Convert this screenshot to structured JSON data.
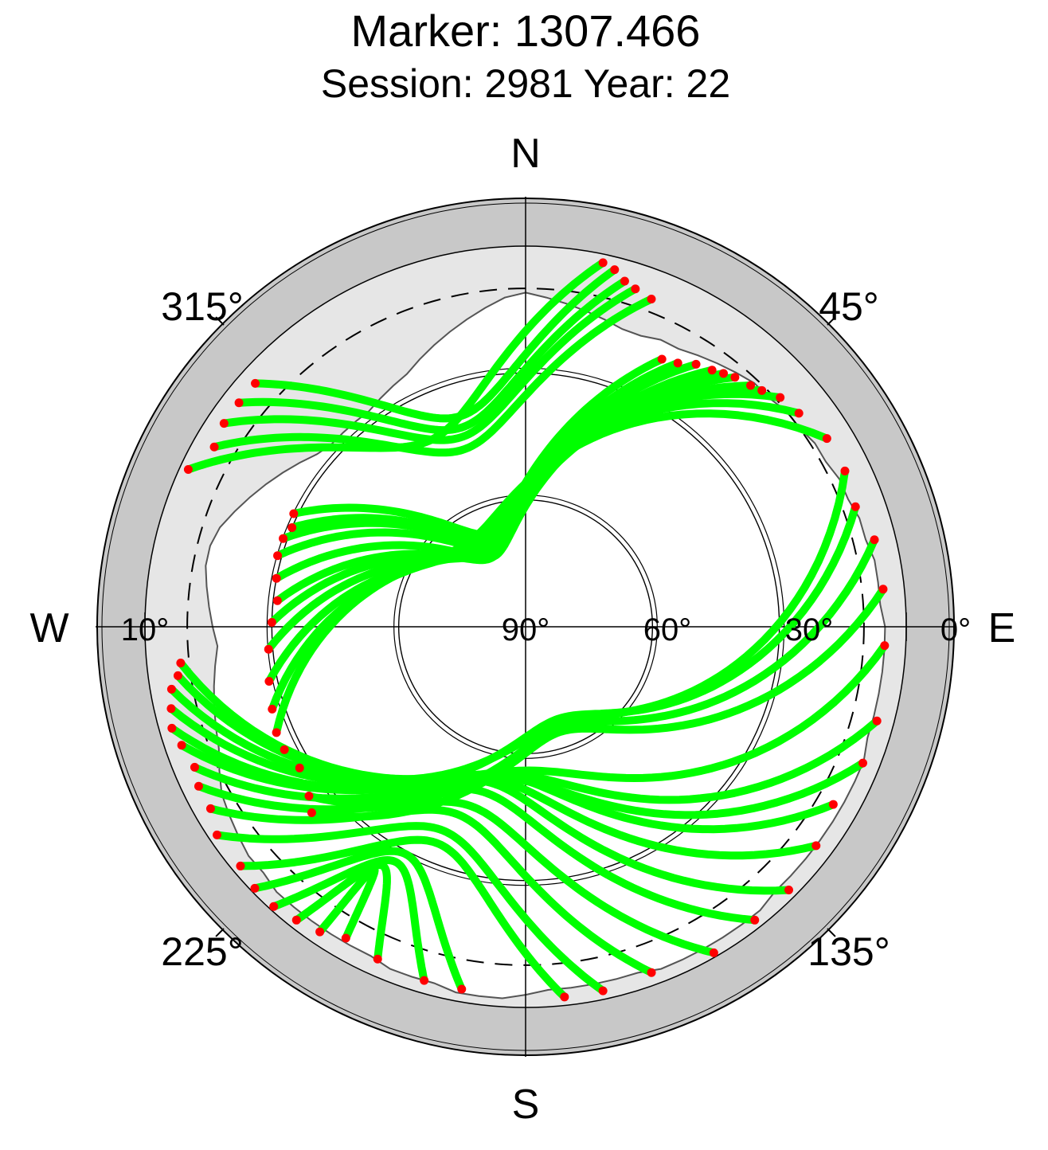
{
  "title": "Marker: 1307.466",
  "subtitle": "Session: 2981 Year: 22",
  "chart_data": {
    "type": "scatter",
    "projection": "polar-skyplot",
    "directions": {
      "north": "N",
      "south": "S",
      "east": "E",
      "west": "W"
    },
    "azimuth_labels": [
      "45°",
      "135°",
      "225°",
      "315°"
    ],
    "elevation_labels": [
      "0°",
      "10°",
      "30°",
      "60°",
      "90°"
    ],
    "elevation_circles": [
      0,
      30,
      60
    ],
    "elevation_mask_deg": 10,
    "colors": {
      "outer_ring": "#c8c8c8",
      "obstructed_area": "#e6e6e6",
      "track": "#00ff00",
      "endpoint": "#ff0000",
      "axes": "#000000"
    },
    "series": [
      {
        "name": "",
        "color": "#00ff00",
        "points_desc": "satellite tracks (az, el)"
      },
      {
        "name": "",
        "color": "#ff0000",
        "points_desc": "track endpoints near horizon mask"
      }
    ],
    "tracks": [
      {
        "start": [
          27,
          19
        ],
        "end": [
          296,
          29
        ]
      },
      {
        "start": [
          30,
          18
        ],
        "end": [
          293,
          30
        ]
      },
      {
        "start": [
          33,
          16
        ],
        "end": [
          290,
          29
        ]
      },
      {
        "start": [
          36,
          15
        ],
        "end": [
          286,
          29
        ]
      },
      {
        "start": [
          38,
          14
        ],
        "end": [
          281,
          30
        ]
      },
      {
        "start": [
          40,
          13
        ],
        "end": [
          276,
          31
        ]
      },
      {
        "start": [
          43,
          12
        ],
        "end": [
          271,
          30
        ]
      },
      {
        "start": [
          45,
          11
        ],
        "end": [
          265,
          29
        ]
      },
      {
        "start": [
          48,
          9
        ],
        "end": [
          258,
          28
        ]
      },
      {
        "start": [
          52,
          8
        ],
        "end": [
          252,
          27
        ]
      },
      {
        "start": [
          58,
          6
        ],
        "end": [
          247,
          26
        ]
      },
      {
        "start": [
          64,
          6
        ],
        "end": [
          243,
          26
        ]
      },
      {
        "start": [
          70,
          7
        ],
        "end": [
          238,
          27
        ]
      },
      {
        "start": [
          76,
          5
        ],
        "end": [
          232,
          25
        ]
      },
      {
        "start": [
          84,
          5
        ],
        "end": [
          229,
          23
        ]
      },
      {
        "start": [
          93,
          5
        ],
        "end": [
          264,
          8
        ]
      },
      {
        "start": [
          105,
          4
        ],
        "end": [
          262,
          7
        ]
      },
      {
        "start": [
          112,
          4
        ],
        "end": [
          260,
          5
        ]
      },
      {
        "start": [
          120,
          6
        ],
        "end": [
          257,
          4
        ]
      },
      {
        "start": [
          127,
          4
        ],
        "end": [
          254,
          3
        ]
      },
      {
        "start": [
          135,
          2
        ],
        "end": [
          251,
          4
        ]
      },
      {
        "start": [
          142,
          2
        ],
        "end": [
          247,
          5
        ]
      },
      {
        "start": [
          150,
          1
        ],
        "end": [
          244,
          4
        ]
      },
      {
        "start": [
          160,
          3
        ],
        "end": [
          240,
          4
        ]
      },
      {
        "start": [
          168,
          2
        ],
        "end": [
          236,
          2
        ]
      },
      {
        "start": [
          174,
          2
        ],
        "end": [
          230,
          2
        ]
      },
      {
        "start": [
          190,
          3
        ],
        "end": [
          226,
          1
        ]
      },
      {
        "start": [
          196,
          3
        ],
        "end": [
          222,
          1
        ]
      },
      {
        "start": [
          204,
          4
        ],
        "end": [
          218,
          2
        ]
      },
      {
        "start": [
          210,
          5
        ],
        "end": [
          214,
          3
        ]
      },
      {
        "start": [
          21,
          7
        ],
        "end": [
          300,
          5
        ]
      },
      {
        "start": [
          18,
          6
        ],
        "end": [
          304,
          4
        ]
      },
      {
        "start": [
          16,
          5
        ],
        "end": [
          308,
          4
        ]
      },
      {
        "start": [
          14,
          3
        ],
        "end": [
          312,
          4
        ]
      },
      {
        "start": [
          12,
          2
        ],
        "end": [
          295,
          2
        ]
      }
    ],
    "mask_profile_el": [
      11,
      12,
      13,
      14,
      15,
      16,
      16,
      15,
      15,
      14,
      13,
      12,
      11,
      11,
      10,
      10,
      9,
      9,
      8,
      8,
      7,
      7,
      6,
      6,
      6,
      5,
      5,
      5,
      5,
      5,
      5,
      4,
      4,
      4,
      4,
      4,
      4,
      4,
      4,
      3,
      3,
      3,
      3,
      3,
      3,
      4,
      4,
      4,
      4,
      4,
      3,
      2,
      2,
      2,
      3,
      3,
      3,
      4,
      4,
      4,
      4,
      4,
      4,
      5,
      5,
      6,
      7,
      8,
      10,
      12,
      13,
      14,
      15,
      16,
      17,
      16,
      15,
      14,
      13,
      13,
      14,
      16,
      18,
      20,
      22,
      24,
      26,
      27,
      27,
      27,
      27,
      26,
      25,
      24,
      22,
      20,
      18,
      16,
      14,
      12
    ]
  }
}
